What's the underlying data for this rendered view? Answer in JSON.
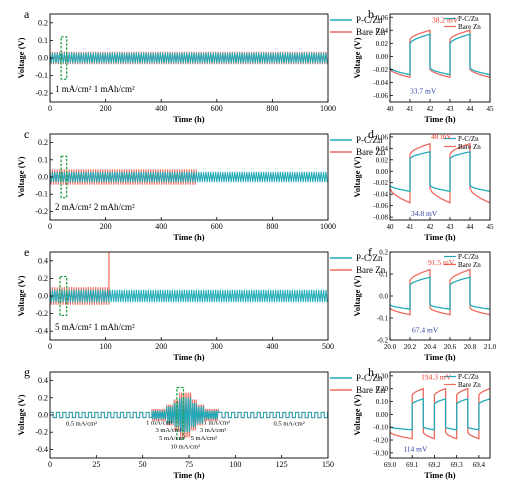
{
  "colors": {
    "pcz": "#22aab8",
    "bare": "#ec6b5e",
    "annot_red": "#e8362a",
    "annot_blue": "#2a3ea0",
    "box": "#27a048",
    "axis": "#000000"
  },
  "chart_data": [
    {
      "id": "a",
      "type": "line",
      "panel_label": "a",
      "xlabel": "Time (h)",
      "ylabel": "Voltage (V)",
      "xlim": [
        0,
        1000
      ],
      "ylim": [
        -0.25,
        0.25
      ],
      "xticks": [
        0,
        200,
        400,
        600,
        800,
        1000
      ],
      "yticks": [
        -0.2,
        -0.1,
        0.0,
        0.1,
        0.2
      ],
      "ytick_labels": [
        "-0.2",
        "-0.1",
        "0.0",
        "0.1",
        "0.2"
      ],
      "condition_text": "1 mA/cm²  1 mAh/cm²",
      "legend": [
        "P-C/Zn",
        "Bare Zn"
      ],
      "series": [
        {
          "name": "P-C/Zn",
          "segments": [
            {
              "x0": 0,
              "x1": 1000,
              "amp": 0.03
            }
          ]
        },
        {
          "name": "Bare Zn",
          "segments": [
            {
              "x0": 0,
              "x1": 1000,
              "amp": 0.035
            }
          ]
        }
      ],
      "highlight": {
        "x0": 40,
        "x1": 60,
        "y0": -0.12,
        "y1": 0.12
      }
    },
    {
      "id": "b",
      "type": "line",
      "panel_label": "b",
      "xlabel": "Time (h)",
      "ylabel": "Voltage (V)",
      "xlim": [
        40,
        45
      ],
      "ylim": [
        -0.07,
        0.065
      ],
      "xticks": [
        40,
        41,
        42,
        43,
        44,
        45
      ],
      "yticks": [
        -0.06,
        -0.04,
        -0.02,
        0.0,
        0.02,
        0.04,
        0.06
      ],
      "ytick_labels": [
        "-0.06",
        "-0.04",
        "-0.02",
        "0.00",
        "0.02",
        "0.04",
        "0.06"
      ],
      "legend": [
        "P-C/Zn",
        "Bare Zn"
      ],
      "period_start": 41,
      "period": 2,
      "series": [
        {
          "name": "P-C/Zn",
          "charge": [
            0.02,
            0.034
          ],
          "discharge": [
            -0.018,
            -0.028
          ]
        },
        {
          "name": "Bare Zn",
          "charge": [
            0.026,
            0.04
          ],
          "discharge": [
            -0.02,
            -0.032
          ]
        }
      ],
      "annotations": [
        {
          "text": "38.2 mV",
          "color": "red",
          "x": 42.1,
          "y": 0.052
        },
        {
          "text": "33.7 mV",
          "color": "blue",
          "x": 41.0,
          "y": -0.057
        }
      ]
    },
    {
      "id": "c",
      "type": "line",
      "panel_label": "c",
      "xlabel": "Time (h)",
      "ylabel": "Voltage (V)",
      "xlim": [
        0,
        1000
      ],
      "ylim": [
        -0.25,
        0.25
      ],
      "xticks": [
        0,
        200,
        400,
        600,
        800,
        1000
      ],
      "yticks": [
        -0.2,
        -0.1,
        0.0,
        0.1,
        0.2
      ],
      "ytick_labels": [
        "-0.2",
        "-0.1",
        "0.0",
        "0.1",
        "0.2"
      ],
      "condition_text": "2 mA/cm²  2 mAh/cm²",
      "legend": [
        "P-C/Zn",
        "Bare Zn"
      ],
      "series": [
        {
          "name": "P-C/Zn",
          "segments": [
            {
              "x0": 0,
              "x1": 1000,
              "amp": 0.03
            }
          ]
        },
        {
          "name": "Bare Zn",
          "segments": [
            {
              "x0": 0,
              "x1": 530,
              "amp": 0.045
            }
          ]
        }
      ],
      "highlight": {
        "x0": 40,
        "x1": 60,
        "y0": -0.12,
        "y1": 0.12
      }
    },
    {
      "id": "d",
      "type": "line",
      "panel_label": "d",
      "xlabel": "Time (h)",
      "ylabel": "Voltage (V)",
      "xlim": [
        40,
        45
      ],
      "ylim": [
        -0.085,
        0.065
      ],
      "xticks": [
        40,
        41,
        42,
        43,
        44,
        45
      ],
      "yticks": [
        -0.08,
        -0.06,
        -0.04,
        -0.02,
        0.0,
        0.02,
        0.04,
        0.06
      ],
      "ytick_labels": [
        "-0.08",
        "-0.06",
        "-0.04",
        "-0.02",
        "0.00",
        "0.02",
        "0.04",
        "0.06"
      ],
      "legend": [
        "P-C/Zn",
        "Bare Zn"
      ],
      "period_start": 41,
      "period": 2,
      "series": [
        {
          "name": "P-C/Zn",
          "charge": [
            0.022,
            0.034
          ],
          "discharge": [
            -0.025,
            -0.035
          ]
        },
        {
          "name": "Bare Zn",
          "charge": [
            0.03,
            0.048
          ],
          "discharge": [
            -0.03,
            -0.055
          ]
        }
      ],
      "annotations": [
        {
          "text": "48 mV",
          "color": "red",
          "x": 42.05,
          "y": 0.056
        },
        {
          "text": "34.8 mV",
          "color": "blue",
          "x": 41.05,
          "y": -0.078
        }
      ]
    },
    {
      "id": "e",
      "type": "line",
      "panel_label": "e",
      "xlabel": "Time (h)",
      "ylabel": "Voltage (V)",
      "xlim": [
        0,
        500
      ],
      "ylim": [
        -0.5,
        0.5
      ],
      "xticks": [
        0,
        100,
        200,
        300,
        400,
        500
      ],
      "yticks": [
        -0.4,
        -0.2,
        0.0,
        0.2,
        0.4
      ],
      "ytick_labels": [
        "-0.4",
        "-0.2",
        "0.0",
        "0.2",
        "0.4"
      ],
      "condition_text": "5 mA/cm²  1 mAh/cm²",
      "legend": [
        "P-C/Zn",
        "Bare Zn"
      ],
      "series": [
        {
          "name": "P-C/Zn",
          "segments": [
            {
              "x0": 0,
              "x1": 500,
              "amp": 0.07
            }
          ]
        },
        {
          "name": "Bare Zn",
          "segments": [
            {
              "x0": 0,
              "x1": 105,
              "amp": 0.1
            }
          ],
          "spike": {
            "x": 106,
            "y0": -0.1,
            "y1": 0.5
          }
        }
      ],
      "highlight": {
        "x0": 18,
        "x1": 30,
        "y0": -0.22,
        "y1": 0.22
      }
    },
    {
      "id": "f",
      "type": "line",
      "panel_label": "f",
      "xlabel": "Time (h)",
      "ylabel": "Voltage (V)",
      "xlim": [
        20.0,
        21.0
      ],
      "ylim": [
        -0.2,
        0.2
      ],
      "xticks": [
        20.0,
        20.2,
        20.4,
        20.6,
        20.8,
        21.0
      ],
      "xtick_labels": [
        "20.0",
        "20.2",
        "20.4",
        "20.6",
        "20.8",
        "21.0"
      ],
      "yticks": [
        -0.2,
        -0.1,
        0.0,
        0.1,
        0.2
      ],
      "ytick_labels": [
        "-0.2",
        "-0.1",
        "0.0",
        "0.1",
        "0.2"
      ],
      "legend": [
        "P-C/Zn",
        "Bare Zn"
      ],
      "period_start": 20.2,
      "period": 0.4,
      "series": [
        {
          "name": "P-C/Zn",
          "charge": [
            0.05,
            0.085
          ],
          "discharge": [
            -0.04,
            -0.06
          ]
        },
        {
          "name": "Bare Zn",
          "charge": [
            0.07,
            0.12
          ],
          "discharge": [
            -0.055,
            -0.085
          ]
        }
      ],
      "annotations": [
        {
          "text": "91.5 mV",
          "color": "red",
          "x": 20.38,
          "y": 0.14
        },
        {
          "text": "67.4 mV",
          "color": "blue",
          "x": 20.22,
          "y": -0.165
        }
      ]
    },
    {
      "id": "g",
      "type": "line",
      "panel_label": "g",
      "xlabel": "Time (h)",
      "ylabel": "Voltage (V)",
      "xlim": [
        0,
        150
      ],
      "ylim": [
        -0.5,
        0.5
      ],
      "xticks": [
        0,
        25,
        50,
        75,
        100,
        125,
        150
      ],
      "yticks": [
        -0.4,
        -0.2,
        0.0,
        0.2,
        0.4
      ],
      "ytick_labels": [
        "-0.4",
        "-0.2",
        "0.0",
        "0.2",
        "0.4"
      ],
      "legend": [
        "P-C/Zn",
        "Bare Zn"
      ],
      "rate_labels": [
        {
          "text": "0.5 mA/cm²",
          "x": 17,
          "y": -0.12
        },
        {
          "text": "1 mA/cm²",
          "x": 59,
          "y": -0.11
        },
        {
          "text": "3 mA/cm²",
          "x": 64,
          "y": -0.2
        },
        {
          "text": "5 mA/cm²",
          "x": 66,
          "y": -0.29
        },
        {
          "text": "10 mA/cm²",
          "x": 73,
          "y": -0.39
        },
        {
          "text": "1 mA/cm²",
          "x": 90,
          "y": -0.11
        },
        {
          "text": "3 mA/cm²",
          "x": 88,
          "y": -0.2
        },
        {
          "text": "5 mA/cm²",
          "x": 83,
          "y": -0.29
        },
        {
          "text": "0.5 mA/cm²",
          "x": 129,
          "y": -0.12
        }
      ],
      "steps": [
        {
          "x0": 0,
          "x1": 55,
          "pcz": 0.03,
          "bare": 0.03,
          "sq": true
        },
        {
          "x0": 55,
          "x1": 63,
          "pcz": 0.05,
          "bare": 0.07
        },
        {
          "x0": 63,
          "x1": 67,
          "pcz": 0.1,
          "bare": 0.12
        },
        {
          "x0": 67,
          "x1": 70,
          "pcz": 0.14,
          "bare": 0.18
        },
        {
          "x0": 70,
          "x1": 76,
          "pcz": 0.2,
          "bare": 0.26
        },
        {
          "x0": 76,
          "x1": 79,
          "pcz": 0.14,
          "bare": 0.18
        },
        {
          "x0": 79,
          "x1": 83,
          "pcz": 0.1,
          "bare": 0.12
        },
        {
          "x0": 83,
          "x1": 91,
          "pcz": 0.05,
          "bare": 0.07
        },
        {
          "x0": 91,
          "x1": 150,
          "pcz": 0.03,
          "bare": 0.03,
          "sq": true
        }
      ],
      "highlight": {
        "x0": 68.5,
        "x1": 72,
        "y0": -0.28,
        "y1": 0.32
      }
    },
    {
      "id": "h",
      "type": "line",
      "panel_label": "h",
      "xlabel": "Time (h)",
      "ylabel": "Voltage (V)",
      "xlim": [
        69.0,
        69.45
      ],
      "ylim": [
        -0.34,
        0.33
      ],
      "xticks": [
        69.0,
        69.1,
        69.2,
        69.3,
        69.4
      ],
      "xtick_labels": [
        "69.0",
        "69.1",
        "69.2",
        "69.3",
        "69.4"
      ],
      "yticks": [
        -0.3,
        -0.2,
        -0.1,
        0.0,
        0.1,
        0.2,
        0.3
      ],
      "ytick_labels": [
        "-0.30",
        "-0.20",
        "-0.10",
        "0.00",
        "0.10",
        "0.20",
        "0.30"
      ],
      "legend": [
        "P-C/Zn",
        "Bare Zn"
      ],
      "period_start": 69.1,
      "period": 0.1,
      "series": [
        {
          "name": "P-C/Zn",
          "charge": [
            0.08,
            0.12
          ],
          "discharge": [
            -0.1,
            -0.12
          ]
        },
        {
          "name": "Bare Zn",
          "charge": [
            0.15,
            0.2
          ],
          "discharge": [
            -0.14,
            -0.19
          ]
        }
      ],
      "annotations": [
        {
          "text": "194.3 mV",
          "color": "red",
          "x": 69.14,
          "y": 0.27
        },
        {
          "text": "114 mV",
          "color": "blue",
          "x": 69.06,
          "y": -0.29
        }
      ]
    }
  ]
}
